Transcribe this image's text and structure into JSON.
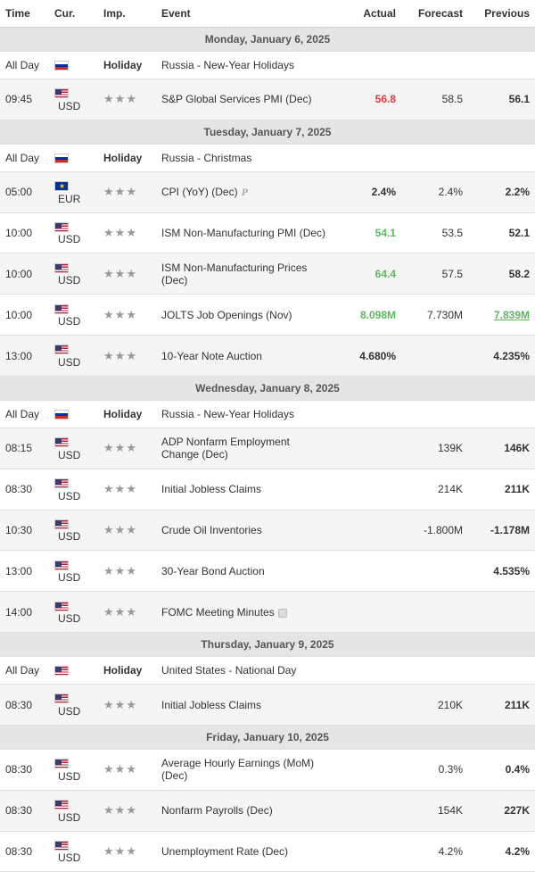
{
  "columns": {
    "time": "Time",
    "cur": "Cur.",
    "imp": "Imp.",
    "event": "Event",
    "actual": "Actual",
    "forecast": "Forecast",
    "previous": "Previous"
  },
  "holiday_label": "Holiday",
  "days": [
    {
      "header": "Monday, January 6, 2025",
      "rows": [
        {
          "time": "All Day",
          "flag": "ru",
          "cur": "",
          "holiday": true,
          "event": "Russia - New-Year Holidays",
          "actual": "",
          "actual_class": "",
          "forecast": "",
          "previous": "",
          "prev_class": "",
          "alt": false,
          "extra": ""
        },
        {
          "time": "09:45",
          "flag": "us",
          "cur": "USD",
          "holiday": false,
          "stars": 3,
          "event": "S&P Global Services PMI (Dec)",
          "actual": "56.8",
          "actual_class": "val-red",
          "forecast": "58.5",
          "previous": "56.1",
          "prev_class": "prev-bold",
          "alt": true,
          "extra": ""
        }
      ]
    },
    {
      "header": "Tuesday, January 7, 2025",
      "rows": [
        {
          "time": "All Day",
          "flag": "ru",
          "cur": "",
          "holiday": true,
          "event": "Russia - Christmas",
          "actual": "",
          "actual_class": "",
          "forecast": "",
          "previous": "",
          "prev_class": "",
          "alt": false,
          "extra": ""
        },
        {
          "time": "05:00",
          "flag": "eu",
          "cur": "EUR",
          "holiday": false,
          "stars": 3,
          "event": "CPI (YoY) (Dec)",
          "actual": "2.4%",
          "actual_class": "val-bold",
          "forecast": "2.4%",
          "previous": "2.2%",
          "prev_class": "prev-bold",
          "alt": true,
          "extra": "p"
        },
        {
          "time": "10:00",
          "flag": "us",
          "cur": "USD",
          "holiday": false,
          "stars": 3,
          "event": "ISM Non-Manufacturing PMI (Dec)",
          "actual": "54.1",
          "actual_class": "val-green",
          "forecast": "53.5",
          "previous": "52.1",
          "prev_class": "prev-bold",
          "alt": false,
          "extra": ""
        },
        {
          "time": "10:00",
          "flag": "us",
          "cur": "USD",
          "holiday": false,
          "stars": 3,
          "event": "ISM Non-Manufacturing Prices (Dec)",
          "actual": "64.4",
          "actual_class": "val-green",
          "forecast": "57.5",
          "previous": "58.2",
          "prev_class": "prev-bold",
          "alt": true,
          "extra": ""
        },
        {
          "time": "10:00",
          "flag": "us",
          "cur": "USD",
          "holiday": false,
          "stars": 3,
          "event": "JOLTS Job Openings (Nov)",
          "actual": "8.098M",
          "actual_class": "val-green",
          "forecast": "7.730M",
          "previous": "7.839M",
          "prev_class": "prev-green",
          "alt": false,
          "extra": ""
        },
        {
          "time": "13:00",
          "flag": "us",
          "cur": "USD",
          "holiday": false,
          "stars": 3,
          "event": "10-Year Note Auction",
          "actual": "4.680%",
          "actual_class": "val-bold",
          "forecast": "",
          "previous": "4.235%",
          "prev_class": "prev-bold",
          "alt": true,
          "extra": ""
        }
      ]
    },
    {
      "header": "Wednesday, January 8, 2025",
      "rows": [
        {
          "time": "All Day",
          "flag": "ru",
          "cur": "",
          "holiday": true,
          "event": "Russia - New-Year Holidays",
          "actual": "",
          "actual_class": "",
          "forecast": "",
          "previous": "",
          "prev_class": "",
          "alt": false,
          "extra": ""
        },
        {
          "time": "08:15",
          "flag": "us",
          "cur": "USD",
          "holiday": false,
          "stars": 3,
          "event": "ADP Nonfarm Employment Change (Dec)",
          "actual": "",
          "actual_class": "",
          "forecast": "139K",
          "previous": "146K",
          "prev_class": "prev-bold",
          "alt": true,
          "extra": ""
        },
        {
          "time": "08:30",
          "flag": "us",
          "cur": "USD",
          "holiday": false,
          "stars": 3,
          "event": "Initial Jobless Claims",
          "actual": "",
          "actual_class": "",
          "forecast": "214K",
          "previous": "211K",
          "prev_class": "prev-bold",
          "alt": false,
          "extra": ""
        },
        {
          "time": "10:30",
          "flag": "us",
          "cur": "USD",
          "holiday": false,
          "stars": 3,
          "event": "Crude Oil Inventories",
          "actual": "",
          "actual_class": "",
          "forecast": "-1.800M",
          "previous": "-1.178M",
          "prev_class": "prev-bold",
          "alt": true,
          "extra": ""
        },
        {
          "time": "13:00",
          "flag": "us",
          "cur": "USD",
          "holiday": false,
          "stars": 3,
          "event": "30-Year Bond Auction",
          "actual": "",
          "actual_class": "",
          "forecast": "",
          "previous": "4.535%",
          "prev_class": "prev-bold",
          "alt": false,
          "extra": ""
        },
        {
          "time": "14:00",
          "flag": "us",
          "cur": "USD",
          "holiday": false,
          "stars": 3,
          "event": "FOMC Meeting Minutes",
          "actual": "",
          "actual_class": "",
          "forecast": "",
          "previous": "",
          "prev_class": "",
          "alt": true,
          "extra": "note"
        }
      ]
    },
    {
      "header": "Thursday, January 9, 2025",
      "rows": [
        {
          "time": "All Day",
          "flag": "us",
          "cur": "",
          "holiday": true,
          "event": "United States - National Day",
          "actual": "",
          "actual_class": "",
          "forecast": "",
          "previous": "",
          "prev_class": "",
          "alt": false,
          "extra": ""
        },
        {
          "time": "08:30",
          "flag": "us",
          "cur": "USD",
          "holiday": false,
          "stars": 3,
          "event": "Initial Jobless Claims",
          "actual": "",
          "actual_class": "",
          "forecast": "210K",
          "previous": "211K",
          "prev_class": "prev-bold",
          "alt": true,
          "extra": ""
        }
      ]
    },
    {
      "header": "Friday, January 10, 2025",
      "rows": [
        {
          "time": "08:30",
          "flag": "us",
          "cur": "USD",
          "holiday": false,
          "stars": 3,
          "event": "Average Hourly Earnings (MoM) (Dec)",
          "actual": "",
          "actual_class": "",
          "forecast": "0.3%",
          "previous": "0.4%",
          "prev_class": "prev-bold",
          "alt": false,
          "extra": ""
        },
        {
          "time": "08:30",
          "flag": "us",
          "cur": "USD",
          "holiday": false,
          "stars": 3,
          "event": "Nonfarm Payrolls (Dec)",
          "actual": "",
          "actual_class": "",
          "forecast": "154K",
          "previous": "227K",
          "prev_class": "prev-bold",
          "alt": true,
          "extra": ""
        },
        {
          "time": "08:30",
          "flag": "us",
          "cur": "USD",
          "holiday": false,
          "stars": 3,
          "event": "Unemployment Rate (Dec)",
          "actual": "",
          "actual_class": "",
          "forecast": "4.2%",
          "previous": "4.2%",
          "prev_class": "prev-bold",
          "alt": false,
          "extra": ""
        }
      ]
    }
  ]
}
